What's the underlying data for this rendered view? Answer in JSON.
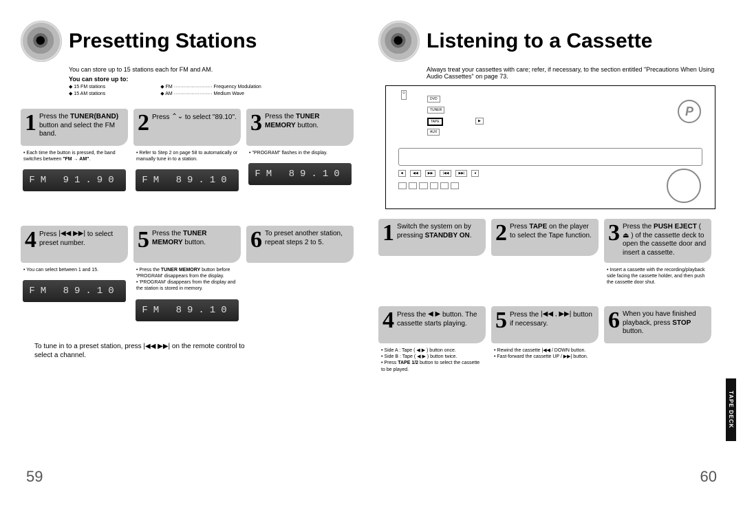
{
  "left": {
    "title": "Presetting Stations",
    "sub": "You can store up to 15 stations each for FM and AM.",
    "sub2": "You can store up to:",
    "subcol1": [
      "15 FM stations",
      "15 AM stations"
    ],
    "subcol2": [
      "FM ························ Frequency Modulation",
      "AM ························ Medium Wave"
    ],
    "steps_top": [
      {
        "num": "1",
        "txt": "Press the <b>TUNER(BAND)</b> button and select the FM band.",
        "note": [
          "Each time the button is pressed, the band switches between <b>\"FM → AM\"</b>."
        ],
        "lcd": "FM 91.90"
      },
      {
        "num": "2",
        "txt": "Press <span class='glyph'>⌃⌄</span> to select \"89.10\".",
        "note": [
          "Refer to Step 2 on page 58 to automatically or manually tune in to a station."
        ],
        "lcd": "FM 89.10"
      },
      {
        "num": "3",
        "txt": "Press the <b>TUNER MEMORY</b> button.",
        "note": [
          "\"PROGRAM\" flashes in the display."
        ],
        "lcd": "FM 89.10"
      }
    ],
    "steps_bottom": [
      {
        "num": "4",
        "txt": "Press <span class='glyph'>|◀◀ ▶▶|</span> to select preset number.",
        "note": [
          "You can select between 1 and 15."
        ],
        "lcd": "FM 89.10"
      },
      {
        "num": "5",
        "txt": "Press the <b>TUNER MEMORY</b> button.",
        "note": [
          "Press the <b>TUNER MEMORY</b> button before 'PROGRAM' disappears from the display.",
          "'PROGRAM' disappears from the display and the station is stored in memory."
        ],
        "lcd": "FM 89.10"
      },
      {
        "num": "6",
        "txt": "To preset another station, repeat steps 2 to 5.",
        "note": [],
        "lcd": ""
      }
    ],
    "footer": "To tune in to a preset station, press |◀◀ ▶▶| on the remote control to select a channel.",
    "pageno": "59"
  },
  "right": {
    "title": "Listening to a Cassette",
    "sub": "Always treat your cassettes with care; refer, if necessary, to the section entitled \"Precautions When Using Audio Cassettes\" on page 73.",
    "device": {
      "buttons_row1": [
        "DVD"
      ],
      "buttons_row2": [
        "TUNER"
      ],
      "buttons_row3": [
        "TAPE"
      ],
      "buttons_row3a": [
        "▶"
      ],
      "buttons_row4": [
        "AUX"
      ],
      "ctrlbar": [
        "■",
        "◀◀",
        "▶▶",
        "|◀◀",
        "▶▶|",
        "●"
      ],
      "knob_label": "P"
    },
    "steps_top": [
      {
        "num": "1",
        "txt": "Switch the system on by pressing <b>STANDBY ON</b>.",
        "note": []
      },
      {
        "num": "2",
        "txt": "Press <b>TAPE</b> on the player to select the Tape function.",
        "note": []
      },
      {
        "num": "3",
        "txt": "Press the <b>PUSH EJECT</b> ( ⏏ ) of the cassette deck to open the cassette door and insert a cassette.",
        "note": [
          "Insert a cassette with the recording/playback side facing the cassette holder, and then push the cassette door shut."
        ]
      }
    ],
    "steps_bottom": [
      {
        "num": "4",
        "txt": "Press the <span class='glyph'>◀ ▶</span> button. The cassette starts playing.",
        "note": [
          "Side A : Tape ( ◀ ▶ ) button once.",
          "Side B : Tape ( ◀ ▶ ) button twice.",
          "Press <b>TAPE 1/2</b> button to select the cassette to be played."
        ]
      },
      {
        "num": "5",
        "txt": "Press the <span class='glyph'>|◀◀ , ▶▶|</span> button if necessary.",
        "note": [
          "Rewind the cassette |◀◀ / DOWN button.",
          "Fast-forward the cassette UP / ▶▶| button."
        ]
      },
      {
        "num": "6",
        "txt": "When you have finished playback, press <b>STOP</b> button.",
        "note": []
      }
    ],
    "tab": "TAPE DECK",
    "pageno": "60"
  },
  "colors": {
    "step_bg": "#c9c9c9",
    "lcd_bg1": "#424242",
    "lcd_bg2": "#232323",
    "text": "#000"
  }
}
